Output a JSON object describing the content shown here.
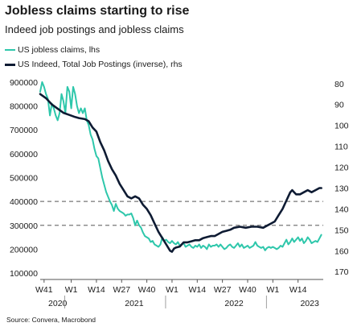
{
  "title": "Jobless claims starting  to rise",
  "subtitle": "Indeed job postings and jobless claims",
  "legend": [
    {
      "label": "US jobless claims, lhs",
      "color": "#2ec7ab"
    },
    {
      "label": "US Indeed, Total Job Postings (inverse), rhs",
      "color": "#0e1b33"
    }
  ],
  "source": "Source: Convera, Macrobond",
  "chart_data": {
    "type": "line",
    "title": "Jobless claims starting  to rise",
    "subtitle": "Indeed job postings and jobless claims",
    "x_ticks": [
      "W41",
      "W1",
      "W14",
      "W27",
      "W40",
      "W1",
      "W14",
      "W27",
      "W40",
      "W1",
      "W14"
    ],
    "x_years": [
      "2020",
      "2021",
      "2022",
      "2023"
    ],
    "y_left": {
      "ticks": [
        "900000",
        "800000",
        "700000",
        "600000",
        "500000",
        "400000",
        "300000",
        "200000",
        "100000"
      ],
      "range": [
        80000,
        920000
      ]
    },
    "y_right": {
      "ticks": [
        "80",
        "90",
        "100",
        "110",
        "120",
        "130",
        "140",
        "150",
        "160",
        "170"
      ],
      "range": [
        77,
        173
      ],
      "inverted": true
    },
    "reference_lines": [
      400000,
      300000
    ],
    "x_range": [
      0,
      146
    ],
    "series": [
      {
        "name": "US jobless claims, lhs",
        "axis": "left",
        "color": "#2ec7ab",
        "points": [
          [
            0,
            860000
          ],
          [
            1,
            900000
          ],
          [
            2,
            880000
          ],
          [
            3,
            850000
          ],
          [
            4,
            830000
          ],
          [
            5,
            760000
          ],
          [
            6,
            810000
          ],
          [
            7,
            790000
          ],
          [
            8,
            760000
          ],
          [
            9,
            740000
          ],
          [
            10,
            770000
          ],
          [
            11,
            850000
          ],
          [
            12,
            820000
          ],
          [
            13,
            770000
          ],
          [
            14,
            880000
          ],
          [
            15,
            860000
          ],
          [
            16,
            790000
          ],
          [
            17,
            880000
          ],
          [
            18,
            850000
          ],
          [
            19,
            800000
          ],
          [
            20,
            770000
          ],
          [
            21,
            790000
          ],
          [
            22,
            770000
          ],
          [
            23,
            790000
          ],
          [
            24,
            740000
          ],
          [
            25,
            720000
          ],
          [
            26,
            680000
          ],
          [
            27,
            660000
          ],
          [
            28,
            620000
          ],
          [
            29,
            590000
          ],
          [
            30,
            580000
          ],
          [
            31,
            540000
          ],
          [
            32,
            500000
          ],
          [
            33,
            470000
          ],
          [
            34,
            440000
          ],
          [
            35,
            420000
          ],
          [
            36,
            400000
          ],
          [
            37,
            385000
          ],
          [
            38,
            360000
          ],
          [
            39,
            390000
          ],
          [
            40,
            370000
          ],
          [
            41,
            360000
          ],
          [
            42,
            355000
          ],
          [
            43,
            350000
          ],
          [
            44,
            340000
          ],
          [
            45,
            345000
          ],
          [
            46,
            345000
          ],
          [
            47,
            350000
          ],
          [
            48,
            330000
          ],
          [
            49,
            300000
          ],
          [
            50,
            320000
          ],
          [
            51,
            300000
          ],
          [
            52,
            290000
          ],
          [
            53,
            270000
          ],
          [
            54,
            255000
          ],
          [
            55,
            250000
          ],
          [
            56,
            245000
          ],
          [
            57,
            230000
          ],
          [
            58,
            235000
          ],
          [
            59,
            220000
          ],
          [
            60,
            215000
          ],
          [
            61,
            210000
          ],
          [
            62,
            220000
          ],
          [
            63,
            250000
          ],
          [
            64,
            235000
          ],
          [
            65,
            240000
          ],
          [
            66,
            230000
          ],
          [
            67,
            225000
          ],
          [
            68,
            235000
          ],
          [
            69,
            225000
          ],
          [
            70,
            220000
          ],
          [
            71,
            230000
          ],
          [
            72,
            215000
          ],
          [
            73,
            220000
          ],
          [
            74,
            225000
          ],
          [
            75,
            210000
          ],
          [
            76,
            215000
          ],
          [
            77,
            220000
          ],
          [
            78,
            210000
          ],
          [
            79,
            205000
          ],
          [
            80,
            215000
          ],
          [
            81,
            210000
          ],
          [
            82,
            220000
          ],
          [
            83,
            205000
          ],
          [
            84,
            215000
          ],
          [
            85,
            210000
          ],
          [
            86,
            200000
          ],
          [
            87,
            220000
          ],
          [
            88,
            210000
          ],
          [
            89,
            215000
          ],
          [
            90,
            215000
          ],
          [
            91,
            220000
          ],
          [
            92,
            210000
          ],
          [
            93,
            220000
          ],
          [
            94,
            210000
          ],
          [
            95,
            200000
          ],
          [
            96,
            205000
          ],
          [
            97,
            215000
          ],
          [
            98,
            220000
          ],
          [
            99,
            210000
          ],
          [
            100,
            205000
          ],
          [
            101,
            215000
          ],
          [
            102,
            225000
          ],
          [
            103,
            210000
          ],
          [
            104,
            220000
          ],
          [
            105,
            205000
          ],
          [
            106,
            210000
          ],
          [
            107,
            215000
          ],
          [
            108,
            205000
          ],
          [
            109,
            210000
          ],
          [
            110,
            215000
          ],
          [
            111,
            230000
          ],
          [
            112,
            215000
          ],
          [
            113,
            210000
          ],
          [
            114,
            205000
          ],
          [
            115,
            210000
          ],
          [
            116,
            195000
          ],
          [
            117,
            205000
          ],
          [
            118,
            210000
          ],
          [
            119,
            205000
          ],
          [
            120,
            210000
          ],
          [
            121,
            205000
          ],
          [
            122,
            200000
          ],
          [
            123,
            205000
          ],
          [
            124,
            215000
          ],
          [
            125,
            210000
          ],
          [
            126,
            225000
          ],
          [
            127,
            240000
          ],
          [
            128,
            220000
          ],
          [
            129,
            230000
          ],
          [
            130,
            245000
          ],
          [
            131,
            230000
          ],
          [
            132,
            240000
          ],
          [
            133,
            250000
          ],
          [
            134,
            235000
          ],
          [
            135,
            245000
          ],
          [
            136,
            225000
          ],
          [
            137,
            235000
          ],
          [
            138,
            250000
          ],
          [
            139,
            240000
          ],
          [
            140,
            225000
          ],
          [
            141,
            230000
          ],
          [
            142,
            235000
          ],
          [
            143,
            230000
          ],
          [
            144,
            245000
          ],
          [
            145,
            260000
          ]
        ]
      },
      {
        "name": "US Indeed, Total Job Postings (inverse), rhs",
        "axis": "right",
        "color": "#0e1b33",
        "points": [
          [
            0,
            85
          ],
          [
            3,
            87
          ],
          [
            6,
            90
          ],
          [
            9,
            92
          ],
          [
            12,
            94
          ],
          [
            15,
            95
          ],
          [
            18,
            96
          ],
          [
            20,
            96.5
          ],
          [
            23,
            97
          ],
          [
            25,
            98
          ],
          [
            27,
            101
          ],
          [
            29,
            103
          ],
          [
            31,
            108
          ],
          [
            33,
            112
          ],
          [
            35,
            117
          ],
          [
            37,
            121
          ],
          [
            39,
            124
          ],
          [
            41,
            128
          ],
          [
            43,
            131
          ],
          [
            45,
            134
          ],
          [
            47,
            135
          ],
          [
            49,
            134
          ],
          [
            51,
            135
          ],
          [
            53,
            138
          ],
          [
            55,
            140
          ],
          [
            57,
            143
          ],
          [
            59,
            147
          ],
          [
            61,
            151
          ],
          [
            63,
            154
          ],
          [
            65,
            157
          ],
          [
            67,
            160
          ],
          [
            68,
            160.5
          ],
          [
            69,
            159
          ],
          [
            70,
            158.5
          ],
          [
            72,
            158
          ],
          [
            74,
            156
          ],
          [
            76,
            156
          ],
          [
            78,
            155.5
          ],
          [
            80,
            155
          ],
          [
            82,
            155
          ],
          [
            84,
            154
          ],
          [
            86,
            153.5
          ],
          [
            88,
            153
          ],
          [
            90,
            153
          ],
          [
            92,
            152
          ],
          [
            94,
            151
          ],
          [
            96,
            150.5
          ],
          [
            98,
            150
          ],
          [
            100,
            149
          ],
          [
            103,
            148.5
          ],
          [
            106,
            149
          ],
          [
            109,
            148.5
          ],
          [
            112,
            148.5
          ],
          [
            115,
            149
          ],
          [
            117,
            148
          ],
          [
            119,
            147
          ],
          [
            121,
            146
          ],
          [
            123,
            143
          ],
          [
            125,
            140
          ],
          [
            127,
            136
          ],
          [
            128,
            134
          ],
          [
            129,
            132
          ],
          [
            130,
            131
          ],
          [
            131,
            132
          ],
          [
            132,
            133
          ],
          [
            134,
            133
          ],
          [
            136,
            132
          ],
          [
            138,
            131
          ],
          [
            140,
            132
          ],
          [
            142,
            131
          ],
          [
            144,
            130
          ],
          [
            145,
            130
          ]
        ]
      }
    ]
  }
}
